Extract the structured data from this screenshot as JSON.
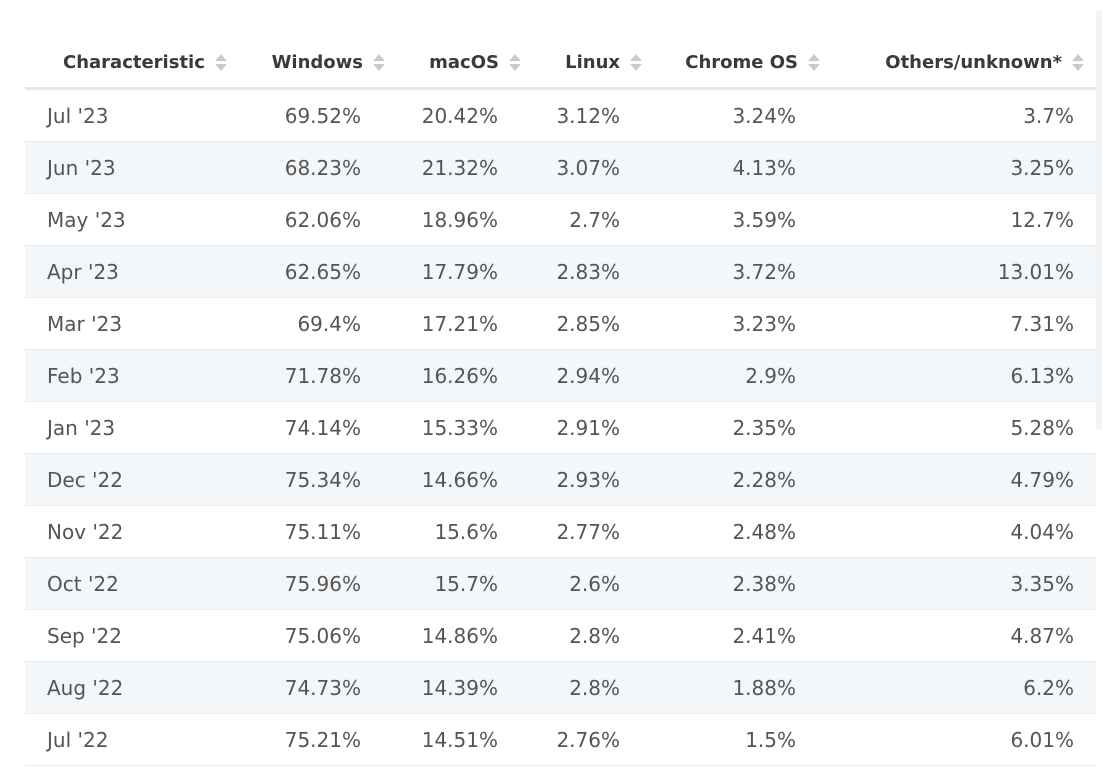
{
  "chart_data": {
    "type": "table",
    "columns": [
      "Characteristic",
      "Windows",
      "macOS",
      "Linux",
      "Chrome OS",
      "Others/unknown*"
    ],
    "rows": [
      [
        "Jul '23",
        "69.52%",
        "20.42%",
        "3.12%",
        "3.24%",
        "3.7%"
      ],
      [
        "Jun '23",
        "68.23%",
        "21.32%",
        "3.07%",
        "4.13%",
        "3.25%"
      ],
      [
        "May '23",
        "62.06%",
        "18.96%",
        "2.7%",
        "3.59%",
        "12.7%"
      ],
      [
        "Apr '23",
        "62.65%",
        "17.79%",
        "2.83%",
        "3.72%",
        "13.01%"
      ],
      [
        "Mar '23",
        "69.4%",
        "17.21%",
        "2.85%",
        "3.23%",
        "7.31%"
      ],
      [
        "Feb '23",
        "71.78%",
        "16.26%",
        "2.94%",
        "2.9%",
        "6.13%"
      ],
      [
        "Jan '23",
        "74.14%",
        "15.33%",
        "2.91%",
        "2.35%",
        "5.28%"
      ],
      [
        "Dec '22",
        "75.34%",
        "14.66%",
        "2.93%",
        "2.28%",
        "4.79%"
      ],
      [
        "Nov '22",
        "75.11%",
        "15.6%",
        "2.77%",
        "2.48%",
        "4.04%"
      ],
      [
        "Oct '22",
        "75.96%",
        "15.7%",
        "2.6%",
        "2.38%",
        "3.35%"
      ],
      [
        "Sep '22",
        "75.06%",
        "14.86%",
        "2.8%",
        "2.41%",
        "4.87%"
      ],
      [
        "Aug '22",
        "74.73%",
        "14.39%",
        "2.8%",
        "1.88%",
        "6.2%"
      ],
      [
        "Jul '22",
        "75.21%",
        "14.51%",
        "2.76%",
        "1.5%",
        "6.01%"
      ]
    ]
  },
  "icons": {
    "sort": "sort-arrows-icon"
  },
  "colors": {
    "header_text": "#3a3a3a",
    "cell_text": "#555555",
    "stripe": "#f4f7fa",
    "sort_icon": "#c7cbd1"
  }
}
